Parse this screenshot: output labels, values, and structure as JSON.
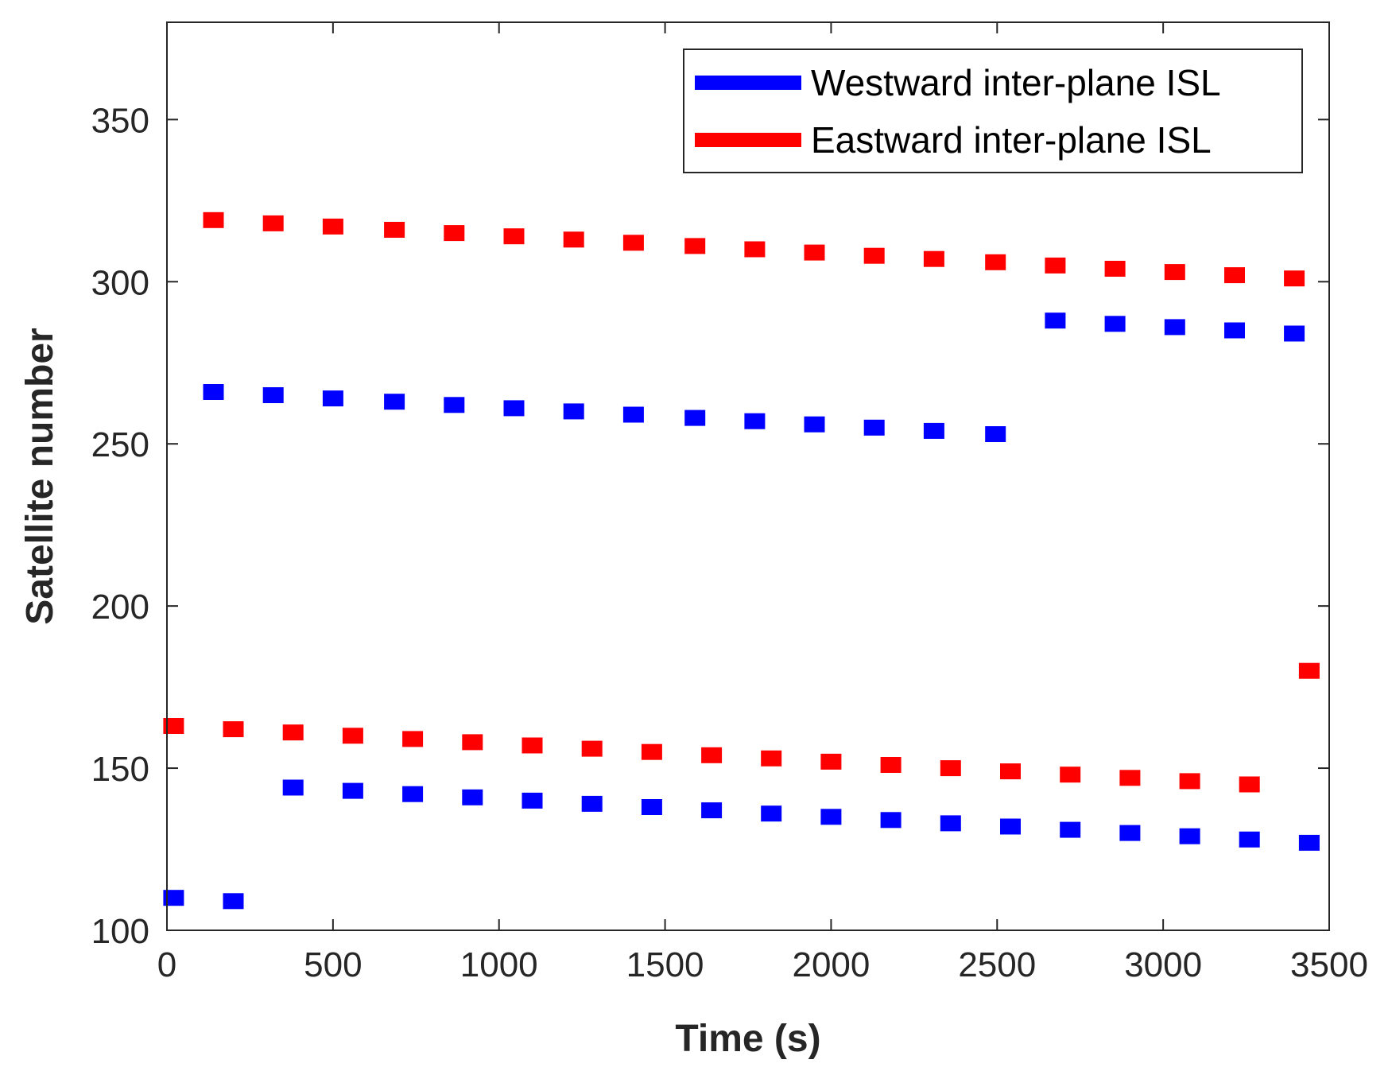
{
  "chart_data": {
    "type": "scatter",
    "title": "",
    "xlabel": "Time (s)",
    "ylabel": "Satellite number",
    "xlim": [
      0,
      3500
    ],
    "ylim": [
      100,
      380
    ],
    "xticks": [
      0,
      500,
      1000,
      1500,
      2000,
      2500,
      3000,
      3500
    ],
    "yticks": [
      100,
      150,
      200,
      250,
      300,
      350
    ],
    "grid": false,
    "legend_position": "top-right",
    "marker": "square",
    "series": [
      {
        "name": "Westward inter-plane ISL",
        "color": "#0000ff",
        "points": [
          {
            "x": 140,
            "y": 266
          },
          {
            "x": 320,
            "y": 265
          },
          {
            "x": 500,
            "y": 264
          },
          {
            "x": 685,
            "y": 263
          },
          {
            "x": 865,
            "y": 262
          },
          {
            "x": 1045,
            "y": 261
          },
          {
            "x": 1225,
            "y": 260
          },
          {
            "x": 1405,
            "y": 259
          },
          {
            "x": 1590,
            "y": 258
          },
          {
            "x": 1770,
            "y": 257
          },
          {
            "x": 1950,
            "y": 256
          },
          {
            "x": 2130,
            "y": 255
          },
          {
            "x": 2310,
            "y": 254
          },
          {
            "x": 2495,
            "y": 253
          },
          {
            "x": 2675,
            "y": 288
          },
          {
            "x": 2855,
            "y": 287
          },
          {
            "x": 3035,
            "y": 286
          },
          {
            "x": 3215,
            "y": 285
          },
          {
            "x": 3395,
            "y": 284
          },
          {
            "x": 20,
            "y": 110
          },
          {
            "x": 200,
            "y": 109
          },
          {
            "x": 380,
            "y": 144
          },
          {
            "x": 560,
            "y": 143
          },
          {
            "x": 740,
            "y": 142
          },
          {
            "x": 920,
            "y": 141
          },
          {
            "x": 1100,
            "y": 140
          },
          {
            "x": 1280,
            "y": 139
          },
          {
            "x": 1460,
            "y": 138
          },
          {
            "x": 1640,
            "y": 137
          },
          {
            "x": 1820,
            "y": 136
          },
          {
            "x": 2000,
            "y": 135
          },
          {
            "x": 2180,
            "y": 134
          },
          {
            "x": 2360,
            "y": 133
          },
          {
            "x": 2540,
            "y": 132
          },
          {
            "x": 2720,
            "y": 131
          },
          {
            "x": 2900,
            "y": 130
          },
          {
            "x": 3080,
            "y": 129
          },
          {
            "x": 3260,
            "y": 128
          },
          {
            "x": 3440,
            "y": 127
          }
        ]
      },
      {
        "name": "Eastward inter-plane ISL",
        "color": "#ff0000",
        "points": [
          {
            "x": 140,
            "y": 319
          },
          {
            "x": 320,
            "y": 318
          },
          {
            "x": 500,
            "y": 317
          },
          {
            "x": 685,
            "y": 316
          },
          {
            "x": 865,
            "y": 315
          },
          {
            "x": 1045,
            "y": 314
          },
          {
            "x": 1225,
            "y": 313
          },
          {
            "x": 1405,
            "y": 312
          },
          {
            "x": 1590,
            "y": 311
          },
          {
            "x": 1770,
            "y": 310
          },
          {
            "x": 1950,
            "y": 309
          },
          {
            "x": 2130,
            "y": 308
          },
          {
            "x": 2310,
            "y": 307
          },
          {
            "x": 2495,
            "y": 306
          },
          {
            "x": 2675,
            "y": 305
          },
          {
            "x": 2855,
            "y": 304
          },
          {
            "x": 3035,
            "y": 303
          },
          {
            "x": 3215,
            "y": 302
          },
          {
            "x": 3395,
            "y": 301
          },
          {
            "x": 20,
            "y": 163
          },
          {
            "x": 200,
            "y": 162
          },
          {
            "x": 380,
            "y": 161
          },
          {
            "x": 560,
            "y": 160
          },
          {
            "x": 740,
            "y": 159
          },
          {
            "x": 920,
            "y": 158
          },
          {
            "x": 1100,
            "y": 157
          },
          {
            "x": 1280,
            "y": 156
          },
          {
            "x": 1460,
            "y": 155
          },
          {
            "x": 1640,
            "y": 154
          },
          {
            "x": 1820,
            "y": 153
          },
          {
            "x": 2000,
            "y": 152
          },
          {
            "x": 2180,
            "y": 151
          },
          {
            "x": 2360,
            "y": 150
          },
          {
            "x": 2540,
            "y": 149
          },
          {
            "x": 2720,
            "y": 148
          },
          {
            "x": 2900,
            "y": 147
          },
          {
            "x": 3080,
            "y": 146
          },
          {
            "x": 3260,
            "y": 145
          },
          {
            "x": 3440,
            "y": 180
          }
        ]
      }
    ]
  }
}
